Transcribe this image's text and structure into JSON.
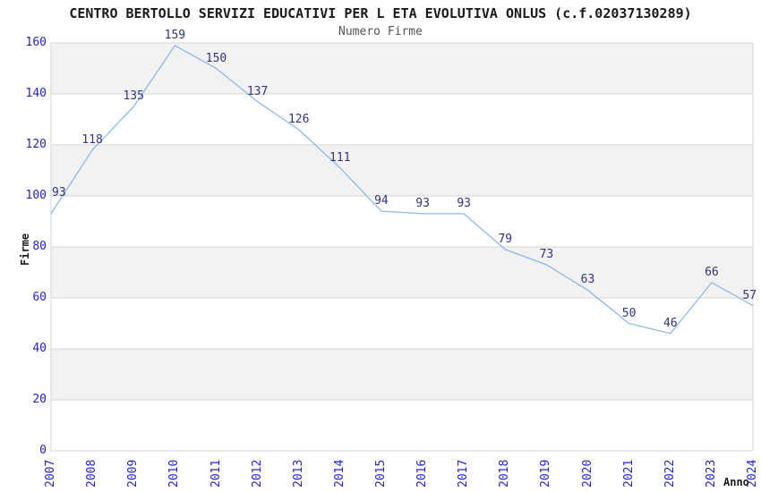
{
  "chart_data": {
    "type": "line",
    "title": "CENTRO BERTOLLO SERVIZI EDUCATIVI PER L ETA EVOLUTIVA ONLUS (c.f.02037130289)",
    "subtitle": "Numero Firme",
    "xlabel": "Anno",
    "ylabel": "Firme",
    "categories": [
      "2007",
      "2008",
      "2009",
      "2010",
      "2011",
      "2012",
      "2013",
      "2014",
      "2015",
      "2016",
      "2017",
      "2018",
      "2019",
      "2020",
      "2021",
      "2022",
      "2023",
      "2024"
    ],
    "values": [
      93,
      118,
      135,
      159,
      150,
      137,
      126,
      111,
      94,
      93,
      93,
      79,
      73,
      63,
      50,
      46,
      66,
      57
    ],
    "ylim": [
      0,
      160
    ],
    "yticks": [
      0,
      20,
      40,
      60,
      80,
      100,
      120,
      140,
      160
    ],
    "grid": "horizontal-alternating-bands",
    "legend": "none",
    "markers": "none",
    "point_labels": true,
    "colors": {
      "line": "#8cb9e8",
      "data_label": "#333380",
      "tick_label": "#2424cc",
      "band": "#f2f2f2",
      "band_alt": "#ffffff",
      "grid": "#d6d6d6",
      "title": "#1a1a1a",
      "subtitle": "#555555",
      "axis_title": "#1a1a1a",
      "background": "#ffffff"
    }
  }
}
